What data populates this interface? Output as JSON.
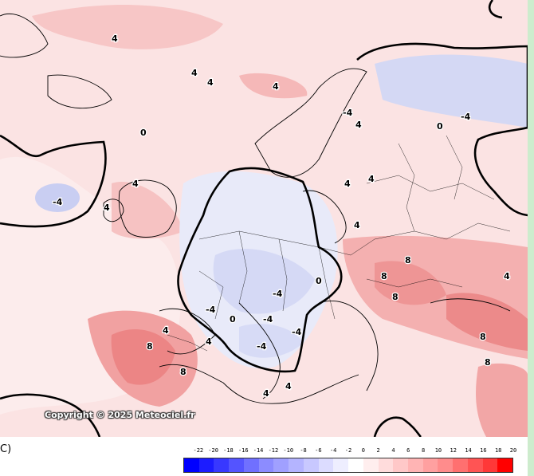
{
  "unit_label": "C)",
  "copyright": "Copyright © 2025 Meteociel.fr",
  "colorscale": {
    "labels": [
      "-22",
      "-20",
      "-18",
      "-16",
      "-14",
      "-12",
      "-10",
      "-8",
      "-6",
      "-4",
      "-2",
      "0",
      "2",
      "4",
      "6",
      "8",
      "10",
      "12",
      "14",
      "16",
      "18",
      "20"
    ],
    "colors": [
      "#0000ff",
      "#1c1cff",
      "#3838ff",
      "#5454ff",
      "#7070ff",
      "#8c8cff",
      "#a0a0ff",
      "#b4b4ff",
      "#c8c8ff",
      "#dcdcff",
      "#eeeeff",
      "#ffffff",
      "#ffeeee",
      "#ffdcdc",
      "#ffc8c8",
      "#ffb4b4",
      "#ffa0a0",
      "#ff8c8c",
      "#ff7070",
      "#ff5454",
      "#ff3838",
      "#ff0000"
    ]
  },
  "contour_labels": [
    "4",
    "-4",
    "0",
    "4",
    "4",
    "4",
    "4",
    "-4",
    "4",
    "4",
    "-4",
    "4",
    "4",
    "4",
    "0",
    "8",
    "8",
    "8",
    "8",
    "8",
    "-4",
    "0",
    "-4",
    "-4",
    "-4",
    "0",
    "4",
    "4",
    "-4",
    "8",
    "8",
    "4",
    "4",
    "4"
  ],
  "colors": {
    "background_warm": "#fbe3e3",
    "warm_zone": "#f4b3b3",
    "hot_zone": "#ec7f7f",
    "cold_zone": "#d7dbf6",
    "coast": "#000000",
    "frame_border": "#cdeccd"
  }
}
